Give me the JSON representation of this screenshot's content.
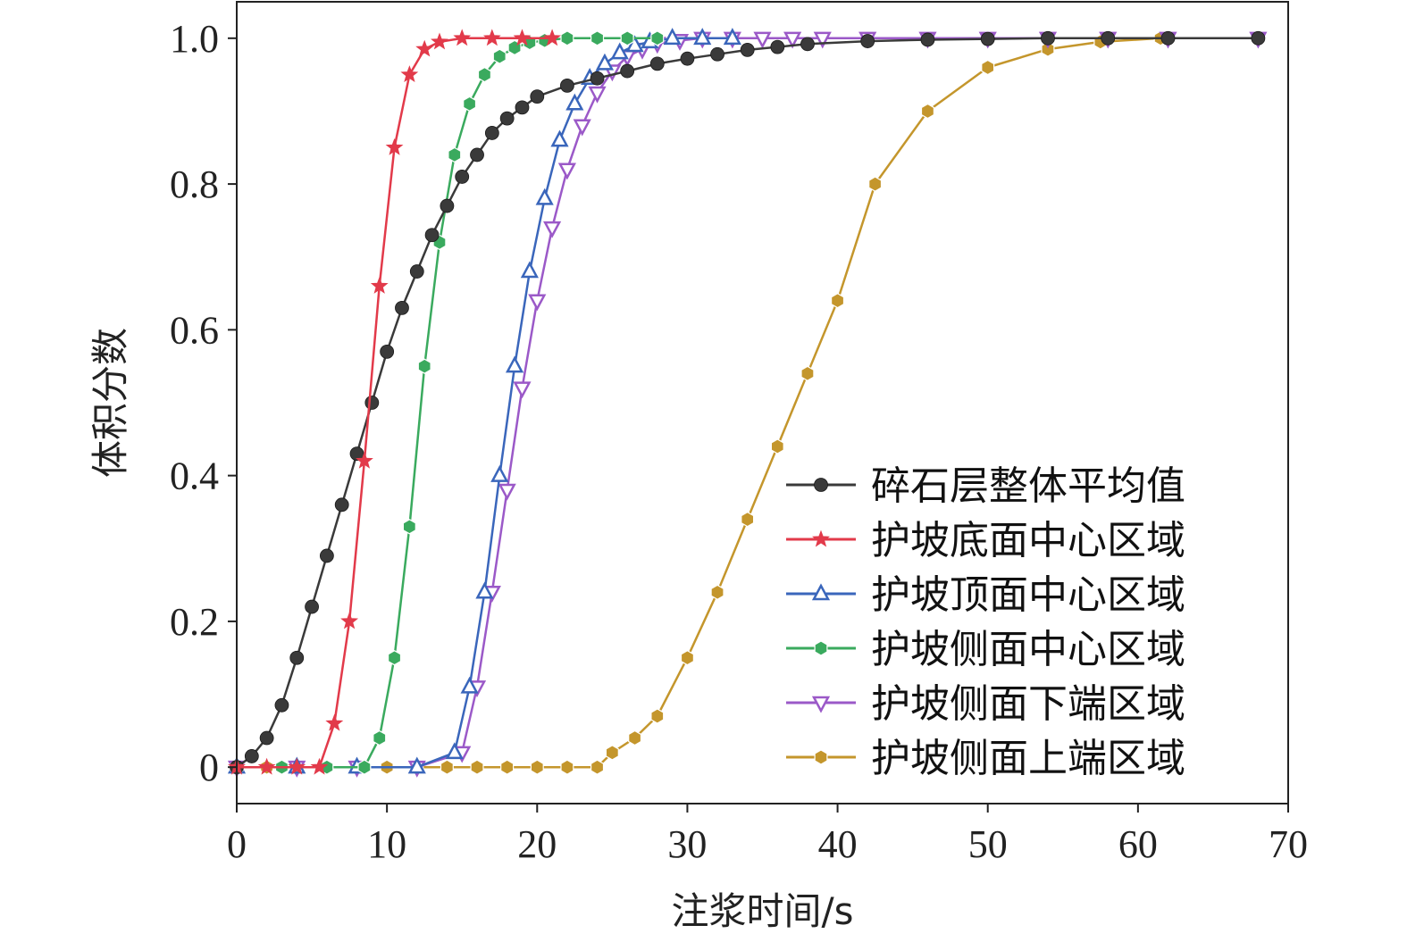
{
  "chart_data": {
    "type": "line",
    "title": "",
    "xlabel": "注浆时间/s",
    "ylabel": "体积分数",
    "xlim": [
      0,
      70
    ],
    "ylim": [
      -0.05,
      1.05
    ],
    "xticks": [
      0,
      10,
      20,
      30,
      40,
      50,
      60,
      70
    ],
    "yticks": [
      0,
      0.2,
      0.4,
      0.6,
      0.8,
      1.0
    ],
    "xtick_labels": [
      "0",
      "10",
      "20",
      "30",
      "40",
      "50",
      "60",
      "70"
    ],
    "ytick_labels": [
      "0",
      "0.2",
      "0.4",
      "0.6",
      "0.8",
      "1.0"
    ],
    "grid": false,
    "legend_position": "bottom-right",
    "series": [
      {
        "name": "碎石层整体平均值",
        "color": "#3a3a3a",
        "marker": "circle",
        "x": [
          0,
          1,
          2,
          3,
          4,
          5,
          6,
          7,
          8,
          9,
          10,
          11,
          12,
          13,
          14,
          15,
          16,
          17,
          18,
          19,
          20,
          22,
          24,
          26,
          28,
          30,
          32,
          34,
          36,
          38,
          42,
          46,
          50,
          54,
          58,
          62,
          68
        ],
        "y": [
          0,
          0.015,
          0.04,
          0.085,
          0.15,
          0.22,
          0.29,
          0.36,
          0.43,
          0.5,
          0.57,
          0.63,
          0.68,
          0.73,
          0.77,
          0.81,
          0.84,
          0.87,
          0.89,
          0.905,
          0.92,
          0.935,
          0.945,
          0.955,
          0.965,
          0.972,
          0.978,
          0.984,
          0.988,
          0.992,
          0.996,
          0.998,
          0.999,
          1.0,
          1.0,
          1.0,
          1.0
        ]
      },
      {
        "name": "护坡底面中心区域",
        "color": "#e23a4a",
        "marker": "star",
        "x": [
          0,
          2,
          4,
          5.5,
          6.5,
          7.5,
          8.5,
          9.5,
          10.5,
          11.5,
          12.5,
          13.5,
          15,
          17,
          19,
          21
        ],
        "y": [
          0,
          0,
          0,
          0,
          0.06,
          0.2,
          0.42,
          0.66,
          0.85,
          0.95,
          0.985,
          0.995,
          1.0,
          1.0,
          1.0,
          1.0
        ]
      },
      {
        "name": "护坡顶面中心区域",
        "color": "#3a66bb",
        "marker": "triangle-up",
        "x": [
          0,
          4,
          8,
          12,
          14.5,
          15.5,
          16.5,
          17.5,
          18.5,
          19.5,
          20.5,
          21.5,
          22.5,
          23.5,
          24.5,
          25.5,
          26.5,
          27.5,
          29,
          31,
          33
        ],
        "y": [
          0,
          0,
          0,
          0,
          0.02,
          0.11,
          0.24,
          0.4,
          0.55,
          0.68,
          0.78,
          0.86,
          0.91,
          0.945,
          0.965,
          0.98,
          0.99,
          0.995,
          1.0,
          1.0,
          1.0
        ]
      },
      {
        "name": "护坡侧面中心区域",
        "color": "#3aaa5e",
        "marker": "hexagon",
        "x": [
          0,
          3,
          6,
          8.5,
          9.5,
          10.5,
          11.5,
          12.5,
          13.5,
          14.5,
          15.5,
          16.5,
          17.5,
          18.5,
          19.5,
          20.5,
          22,
          24,
          26,
          28
        ],
        "y": [
          0,
          0,
          0,
          0,
          0.04,
          0.15,
          0.33,
          0.55,
          0.72,
          0.84,
          0.91,
          0.95,
          0.975,
          0.987,
          0.994,
          0.997,
          1.0,
          1.0,
          1.0,
          1.0
        ]
      },
      {
        "name": "护坡侧面下端区域",
        "color": "#9b59c8",
        "marker": "triangle-down",
        "x": [
          0,
          4,
          8,
          12,
          15,
          16,
          17,
          18,
          19,
          20,
          21,
          22,
          23,
          24,
          25,
          26,
          27,
          28,
          29.5,
          31,
          33,
          35,
          37,
          39,
          42,
          46,
          50,
          54,
          58,
          62,
          68
        ],
        "y": [
          0,
          0,
          0,
          0,
          0.02,
          0.11,
          0.24,
          0.38,
          0.52,
          0.64,
          0.74,
          0.82,
          0.88,
          0.925,
          0.955,
          0.975,
          0.985,
          0.993,
          0.997,
          1.0,
          1.0,
          1.0,
          1.0,
          1.0,
          1.0,
          1.0,
          1.0,
          1.0,
          1.0,
          1.0,
          1.0
        ]
      },
      {
        "name": "护坡侧面上端区域",
        "color": "#c4962c",
        "marker": "hexagon",
        "x": [
          0,
          2,
          4,
          6,
          8,
          10,
          12,
          14,
          16,
          18,
          20,
          22,
          24,
          25,
          26.5,
          28,
          30,
          32,
          34,
          36,
          38,
          40,
          42.5,
          46,
          50,
          54,
          57.5,
          61.5,
          68
        ],
        "y": [
          0,
          0,
          0,
          0,
          0,
          0,
          0,
          0,
          0,
          0,
          0,
          0,
          0,
          0.02,
          0.04,
          0.07,
          0.15,
          0.24,
          0.34,
          0.44,
          0.54,
          0.64,
          0.8,
          0.9,
          0.96,
          0.985,
          0.995,
          1.0,
          1.0
        ]
      }
    ]
  }
}
